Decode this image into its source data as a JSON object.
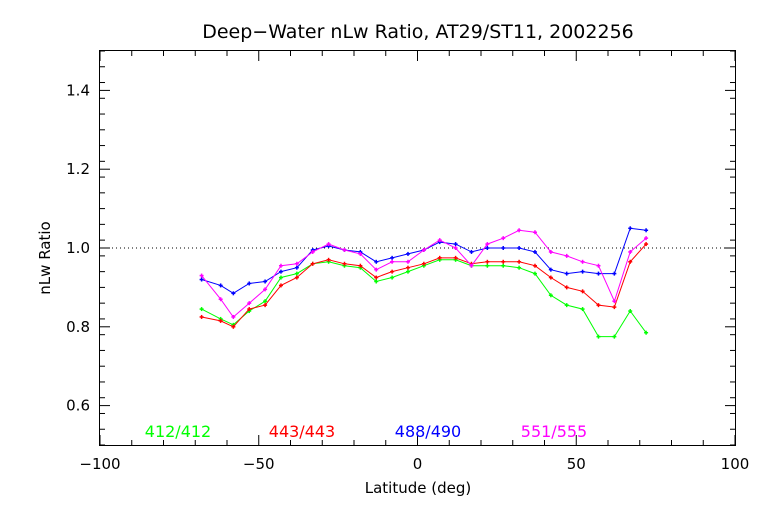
{
  "chart_data": {
    "type": "line",
    "title": "Deep−Water nLw Ratio, AT29/ST11, 2002256",
    "xlabel": "Latitude (deg)",
    "ylabel": "nLw Ratio",
    "xlim": [
      -100,
      100
    ],
    "ylim": [
      0.5,
      1.5
    ],
    "xticks": [
      -100,
      -50,
      0,
      50,
      100
    ],
    "xtick_labels": [
      "−100",
      "−50",
      "0",
      "50",
      "100"
    ],
    "yticks": [
      0.6,
      0.8,
      1.0,
      1.2,
      1.4
    ],
    "ytick_labels": [
      "0.6",
      "0.8",
      "1.0",
      "1.2",
      "1.4"
    ],
    "reference_line": 1.0,
    "grid": false,
    "legend_position": "bottom",
    "x": [
      -68,
      -62,
      -58,
      -53,
      -48,
      -43,
      -38,
      -33,
      -28,
      -23,
      -18,
      -13,
      -8,
      -3,
      2,
      7,
      12,
      17,
      22,
      27,
      32,
      37,
      42,
      47,
      52,
      57,
      62,
      67,
      72
    ],
    "series": [
      {
        "name": "412/412",
        "color": "#00ff00",
        "values": [
          0.845,
          0.82,
          0.805,
          0.84,
          0.865,
          0.925,
          0.935,
          0.96,
          0.965,
          0.955,
          0.95,
          0.915,
          0.925,
          0.94,
          0.955,
          0.97,
          0.97,
          0.955,
          0.955,
          0.955,
          0.95,
          0.935,
          0.88,
          0.855,
          0.845,
          0.775,
          0.775,
          0.84,
          0.785
        ]
      },
      {
        "name": "443/443",
        "color": "#ff0000",
        "values": [
          0.825,
          0.815,
          0.8,
          0.845,
          0.855,
          0.905,
          0.925,
          0.96,
          0.97,
          0.96,
          0.955,
          0.925,
          0.94,
          0.95,
          0.96,
          0.975,
          0.975,
          0.96,
          0.965,
          0.965,
          0.965,
          0.955,
          0.925,
          0.9,
          0.89,
          0.855,
          0.85,
          0.965,
          1.01
        ]
      },
      {
        "name": "488/490",
        "color": "#0000ff",
        "values": [
          0.92,
          0.905,
          0.885,
          0.91,
          0.915,
          0.94,
          0.95,
          0.995,
          1.005,
          0.995,
          0.99,
          0.965,
          0.975,
          0.985,
          0.995,
          1.015,
          1.01,
          0.99,
          1.0,
          1.0,
          1.0,
          0.99,
          0.945,
          0.935,
          0.94,
          0.935,
          0.935,
          1.05,
          1.045
        ]
      },
      {
        "name": "551/555",
        "color": "#ff00ff",
        "values": [
          0.93,
          0.87,
          0.825,
          0.86,
          0.895,
          0.955,
          0.96,
          0.99,
          1.01,
          0.995,
          0.985,
          0.945,
          0.965,
          0.965,
          0.995,
          1.02,
          1.0,
          0.955,
          1.01,
          1.025,
          1.045,
          1.04,
          0.99,
          0.98,
          0.965,
          0.955,
          0.865,
          0.99,
          1.025
        ]
      }
    ]
  }
}
